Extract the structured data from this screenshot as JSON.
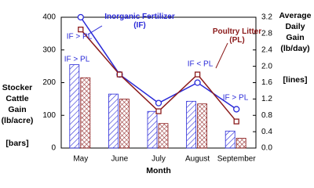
{
  "chart_data": {
    "type": "combo",
    "categories": [
      "May",
      "June",
      "July",
      "August",
      "September"
    ],
    "x_label": "Month",
    "y_label": [
      "Stocker",
      "Cattle",
      "Gain",
      "(lb/acre)"
    ],
    "y_note": "[bars]",
    "y2_label": [
      "Average",
      "Daily",
      "Gain",
      "(lb/day)"
    ],
    "y2_note": "[lines]",
    "ylim": [
      0,
      400
    ],
    "yticks": [
      0,
      100,
      200,
      300,
      400
    ],
    "y2lim": [
      0,
      3.2
    ],
    "y2ticks": [
      {
        "value": 0,
        "label": "0.0"
      },
      0.4,
      0.8,
      1.2,
      1.6,
      {
        "value": 2,
        "label": "2.0"
      },
      2.4,
      2.8,
      3.2
    ],
    "series": [
      {
        "type": "bar",
        "color": "#2a2ad8",
        "pattern": "hatch",
        "axis": "y",
        "values": [
          255,
          165,
          112,
          143,
          52
        ]
      },
      {
        "type": "bar",
        "color": "#8b1a1a",
        "pattern": "crosshatch",
        "axis": "y",
        "values": [
          215,
          150,
          75,
          135,
          30
        ]
      },
      {
        "type": "line",
        "name": "Inorganic Fertilizer (IF)",
        "color": "#2a2ad8",
        "marker": "circle",
        "axis": "y2",
        "values": [
          3.2,
          1.8,
          1.1,
          1.6,
          0.95
        ]
      },
      {
        "type": "line",
        "name": "Poultry Litter (PL)",
        "color": "#8b1a1a",
        "marker": "square",
        "axis": "y2",
        "values": [
          2.9,
          1.8,
          0.9,
          1.8,
          0.65
        ]
      }
    ],
    "annotations": [
      "IF > PL",
      "IF > PL",
      "IF < PL",
      "IF > PL"
    ]
  }
}
